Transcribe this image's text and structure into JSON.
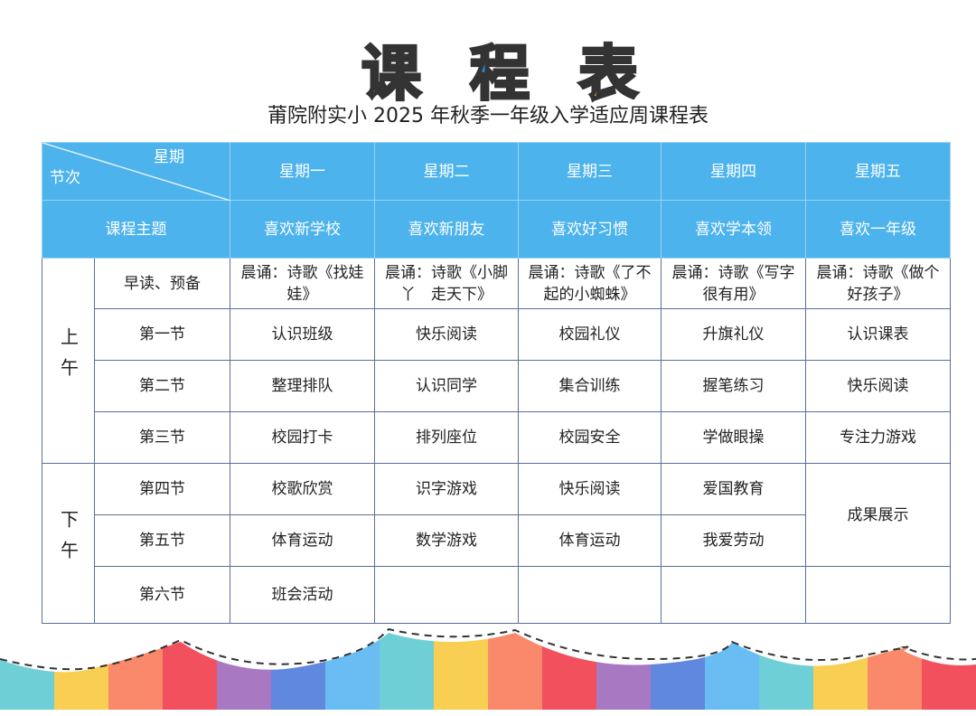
{
  "logo": {
    "chars": [
      "课",
      "程",
      "表"
    ],
    "colors": [
      "#ef4a45",
      "#2f8de0",
      "#f2a93a"
    ]
  },
  "subtitle": "莆院附实小 2025 年秋季一年级入学适应周课程表",
  "header": {
    "corner_top": "星期",
    "corner_bottom": "节次",
    "days": [
      "星期一",
      "星期二",
      "星期三",
      "星期四",
      "星期五"
    ],
    "theme_label": "课程主题",
    "themes": [
      "喜欢新学校",
      "喜欢新朋友",
      "喜欢好习惯",
      "喜欢学本领",
      "喜欢一年级"
    ]
  },
  "colors": {
    "header_bg": "#4db3ec",
    "border": "#5d6f96"
  },
  "morning": {
    "label": "上午",
    "rows": [
      {
        "period": "早读、预备",
        "cells": [
          "晨诵：诗歌《找娃娃》",
          "晨诵：诗歌《小脚丫　走天下》",
          "晨诵：诗歌《了不起的小蜘蛛》",
          "晨诵：诗歌《写字很有用》",
          "晨诵：诗歌《做个好孩子》"
        ]
      },
      {
        "period": "第一节",
        "cells": [
          "认识班级",
          "快乐阅读",
          "校园礼仪",
          "升旗礼仪",
          "认识课表"
        ]
      },
      {
        "period": "第二节",
        "cells": [
          "整理排队",
          "认识同学",
          "集合训练",
          "握笔练习",
          "快乐阅读"
        ]
      },
      {
        "period": "第三节",
        "cells": [
          "校园打卡",
          "排列座位",
          "校园安全",
          "学做眼操",
          "专注力游戏"
        ]
      }
    ]
  },
  "afternoon": {
    "label": "下午",
    "rows": [
      {
        "period": "第四节",
        "cells": [
          "校歌欣赏",
          "识字游戏",
          "快乐阅读",
          "爱国教育"
        ]
      },
      {
        "period": "第五节",
        "cells": [
          "体育运动",
          "数学游戏",
          "体育运动",
          "我爱劳动"
        ]
      },
      {
        "period": "第六节",
        "cells": [
          "班会活动",
          "",
          "",
          ""
        ]
      }
    ],
    "friday_merged": "成果展示"
  }
}
